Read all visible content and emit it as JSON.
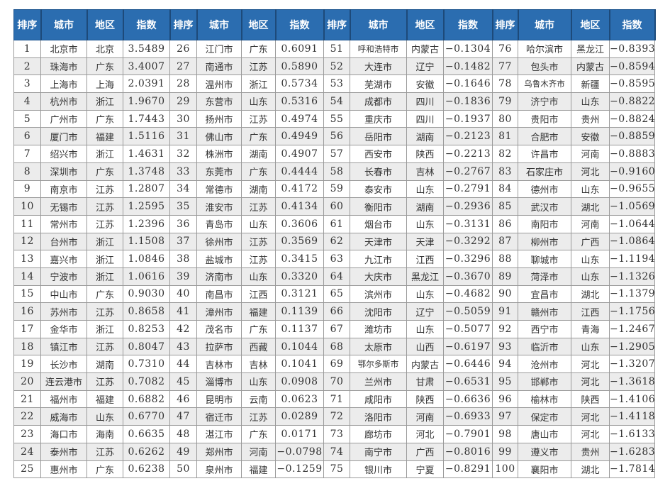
{
  "headers": [
    "排序",
    "城市",
    "地区",
    "指数"
  ],
  "colors": {
    "header_bg": "#2b6db0",
    "header_text": "#ffffff",
    "row_alt": "#ececec"
  },
  "rows": [
    [
      "1",
      "北京市",
      "北京",
      "3.5489"
    ],
    [
      "2",
      "珠海市",
      "广东",
      "3.4007"
    ],
    [
      "3",
      "上海市",
      "上海",
      "2.0391"
    ],
    [
      "4",
      "杭州市",
      "浙江",
      "1.9670"
    ],
    [
      "5",
      "广州市",
      "广东",
      "1.7443"
    ],
    [
      "6",
      "厦门市",
      "福建",
      "1.5116"
    ],
    [
      "7",
      "绍兴市",
      "浙江",
      "1.4631"
    ],
    [
      "8",
      "深圳市",
      "广东",
      "1.3748"
    ],
    [
      "9",
      "南京市",
      "江苏",
      "1.2807"
    ],
    [
      "10",
      "无锡市",
      "江苏",
      "1.2595"
    ],
    [
      "11",
      "常州市",
      "江苏",
      "1.2396"
    ],
    [
      "12",
      "台州市",
      "浙江",
      "1.1508"
    ],
    [
      "13",
      "嘉兴市",
      "浙江",
      "1.0846"
    ],
    [
      "14",
      "宁波市",
      "浙江",
      "1.0616"
    ],
    [
      "15",
      "中山市",
      "广东",
      "0.9030"
    ],
    [
      "16",
      "苏州市",
      "江苏",
      "0.8658"
    ],
    [
      "17",
      "金华市",
      "浙江",
      "0.8253"
    ],
    [
      "18",
      "镇江市",
      "江苏",
      "0.8047"
    ],
    [
      "19",
      "长沙市",
      "湖南",
      "0.7310"
    ],
    [
      "20",
      "连云港市",
      "江苏",
      "0.7082"
    ],
    [
      "21",
      "福州市",
      "福建",
      "0.6882"
    ],
    [
      "22",
      "威海市",
      "山东",
      "0.6770"
    ],
    [
      "23",
      "海口市",
      "海南",
      "0.6635"
    ],
    [
      "24",
      "泰州市",
      "江苏",
      "0.6262"
    ],
    [
      "25",
      "惠州市",
      "广东",
      "0.6238"
    ],
    [
      "26",
      "江门市",
      "广东",
      "0.6091"
    ],
    [
      "27",
      "南通市",
      "江苏",
      "0.5890"
    ],
    [
      "28",
      "温州市",
      "浙江",
      "0.5734"
    ],
    [
      "29",
      "东营市",
      "山东",
      "0.5316"
    ],
    [
      "30",
      "扬州市",
      "江苏",
      "0.4974"
    ],
    [
      "31",
      "佛山市",
      "广东",
      "0.4949"
    ],
    [
      "32",
      "株洲市",
      "湖南",
      "0.4907"
    ],
    [
      "33",
      "东莞市",
      "广东",
      "0.4444"
    ],
    [
      "34",
      "常德市",
      "湖南",
      "0.4172"
    ],
    [
      "35",
      "淮安市",
      "江苏",
      "0.4134"
    ],
    [
      "36",
      "青岛市",
      "山东",
      "0.3606"
    ],
    [
      "37",
      "徐州市",
      "江苏",
      "0.3569"
    ],
    [
      "38",
      "盐城市",
      "江苏",
      "0.3415"
    ],
    [
      "39",
      "济南市",
      "山东",
      "0.3320"
    ],
    [
      "40",
      "南昌市",
      "江西",
      "0.3121"
    ],
    [
      "41",
      "漳州市",
      "福建",
      "0.1139"
    ],
    [
      "42",
      "茂名市",
      "广东",
      "0.1137"
    ],
    [
      "43",
      "拉萨市",
      "西藏",
      "0.1044"
    ],
    [
      "44",
      "吉林市",
      "吉林",
      "0.1041"
    ],
    [
      "45",
      "淄博市",
      "山东",
      "0.0908"
    ],
    [
      "46",
      "昆明市",
      "云南",
      "0.0623"
    ],
    [
      "47",
      "宿迁市",
      "江苏",
      "0.0289"
    ],
    [
      "48",
      "湛江市",
      "广东",
      "0.0171"
    ],
    [
      "49",
      "郑州市",
      "河南",
      "−0.0798"
    ],
    [
      "50",
      "泉州市",
      "福建",
      "−0.1259"
    ],
    [
      "51",
      "呼和浩特市",
      "内蒙古",
      "−0.1304"
    ],
    [
      "52",
      "大连市",
      "辽宁",
      "−0.1482"
    ],
    [
      "53",
      "芜湖市",
      "安徽",
      "−0.1646"
    ],
    [
      "54",
      "成都市",
      "四川",
      "−0.1836"
    ],
    [
      "55",
      "重庆市",
      "四川",
      "−0.1937"
    ],
    [
      "56",
      "岳阳市",
      "湖南",
      "−0.2123"
    ],
    [
      "57",
      "西安市",
      "陕西",
      "−0.2213"
    ],
    [
      "58",
      "长春市",
      "吉林",
      "−0.2767"
    ],
    [
      "59",
      "泰安市",
      "山东",
      "−0.2791"
    ],
    [
      "60",
      "衡阳市",
      "湖南",
      "−0.2936"
    ],
    [
      "61",
      "烟台市",
      "山东",
      "−0.3131"
    ],
    [
      "62",
      "天津市",
      "天津",
      "−0.3292"
    ],
    [
      "63",
      "九江市",
      "江西",
      "−0.3296"
    ],
    [
      "64",
      "大庆市",
      "黑龙江",
      "−0.3670"
    ],
    [
      "65",
      "滨州市",
      "山东",
      "−0.4682"
    ],
    [
      "66",
      "沈阳市",
      "辽宁",
      "−0.5059"
    ],
    [
      "67",
      "潍坊市",
      "山东",
      "−0.5077"
    ],
    [
      "68",
      "太原市",
      "山西",
      "−0.6197"
    ],
    [
      "69",
      "鄂尔多斯市",
      "内蒙古",
      "−0.6446"
    ],
    [
      "70",
      "兰州市",
      "甘肃",
      "−0.6531"
    ],
    [
      "71",
      "咸阳市",
      "陕西",
      "−0.6636"
    ],
    [
      "72",
      "洛阳市",
      "河南",
      "−0.6933"
    ],
    [
      "73",
      "廊坊市",
      "河北",
      "−0.7901"
    ],
    [
      "74",
      "南宁市",
      "广西",
      "−0.8016"
    ],
    [
      "75",
      "银川市",
      "宁夏",
      "−0.8291"
    ],
    [
      "76",
      "哈尔滨市",
      "黑龙江",
      "−0.8393"
    ],
    [
      "77",
      "包头市",
      "内蒙古",
      "−0.8594"
    ],
    [
      "78",
      "乌鲁木齐市",
      "新疆",
      "−0.8595"
    ],
    [
      "79",
      "济宁市",
      "山东",
      "−0.8822"
    ],
    [
      "80",
      "贵阳市",
      "贵州",
      "−0.8824"
    ],
    [
      "81",
      "合肥市",
      "安徽",
      "−0.8859"
    ],
    [
      "82",
      "许昌市",
      "河南",
      "−0.8883"
    ],
    [
      "83",
      "石家庄市",
      "河北",
      "−0.9160"
    ],
    [
      "84",
      "德州市",
      "山东",
      "−0.9655"
    ],
    [
      "85",
      "武汉市",
      "湖北",
      "−1.0569"
    ],
    [
      "86",
      "南阳市",
      "河南",
      "−1.0644"
    ],
    [
      "87",
      "柳州市",
      "广西",
      "−1.0864"
    ],
    [
      "88",
      "聊城市",
      "山东",
      "−1.1194"
    ],
    [
      "89",
      "菏泽市",
      "山东",
      "−1.1326"
    ],
    [
      "90",
      "宜昌市",
      "湖北",
      "−1.1379"
    ],
    [
      "91",
      "赣州市",
      "江西",
      "−1.1756"
    ],
    [
      "92",
      "西宁市",
      "青海",
      "−1.2467"
    ],
    [
      "93",
      "临沂市",
      "山东",
      "−1.2905"
    ],
    [
      "94",
      "沧州市",
      "河北",
      "−1.3207"
    ],
    [
      "95",
      "邯郸市",
      "河北",
      "−1.3618"
    ],
    [
      "96",
      "榆林市",
      "陕西",
      "−1.4106"
    ],
    [
      "97",
      "保定市",
      "河北",
      "−1.4118"
    ],
    [
      "98",
      "唐山市",
      "河北",
      "−1.6133"
    ],
    [
      "99",
      "遵义市",
      "贵州",
      "−1.6283"
    ],
    [
      "100",
      "襄阳市",
      "湖北",
      "−1.7814"
    ]
  ]
}
